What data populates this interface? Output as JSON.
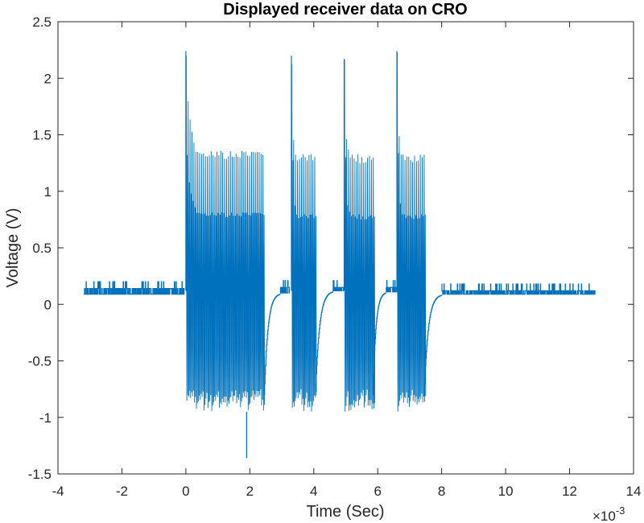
{
  "chart_data": {
    "type": "line",
    "title": "Displayed receiver data on CRO",
    "xlabel": "Time (Sec)",
    "ylabel": "Voltage (V)",
    "x_exponent_label": "×10",
    "x_exponent_power": "-3",
    "xlim": [
      -4,
      14
    ],
    "ylim": [
      -1.5,
      2.5
    ],
    "x_ticks": [
      -4,
      -2,
      0,
      2,
      4,
      6,
      8,
      10,
      12,
      14
    ],
    "y_ticks": [
      -1.5,
      -1,
      -0.5,
      0,
      0.5,
      1,
      1.5,
      2,
      2.5
    ],
    "x_tick_labels": [
      "-4",
      "-2",
      "0",
      "2",
      "4",
      "6",
      "8",
      "10",
      "12",
      "14"
    ],
    "y_tick_labels": [
      "-1.5",
      "-1",
      "-0.5",
      "0",
      "0.5",
      "1",
      "1.5",
      "2",
      "2.5"
    ],
    "grid": false,
    "line_color": "#0072BD",
    "series": [
      {
        "baseline_segments": [
          {
            "x_start": -3.2,
            "x_end": -0.05,
            "low": 0.09,
            "high": 0.14
          },
          {
            "x_start": 2.95,
            "x_end": 3.25,
            "low": 0.1,
            "high": 0.15
          },
          {
            "x_start": 4.6,
            "x_end": 4.95,
            "low": 0.12,
            "high": 0.15
          },
          {
            "x_start": 6.25,
            "x_end": 6.6,
            "low": 0.11,
            "high": 0.15
          },
          {
            "x_start": 8.0,
            "x_end": 12.8,
            "low": 0.09,
            "high": 0.12
          }
        ],
        "bursts": [
          {
            "x_start": 0.0,
            "x_end": 2.45,
            "peak": 2.24,
            "high": 1.36,
            "low": -0.95,
            "min_spike": -1.36,
            "min_spike_x": 1.9
          },
          {
            "x_start": 3.3,
            "x_end": 4.05,
            "peak": 2.2,
            "high": 1.34,
            "low": -0.95
          },
          {
            "x_start": 4.95,
            "x_end": 5.85,
            "peak": 2.17,
            "high": 1.33,
            "low": -0.95
          },
          {
            "x_start": 6.6,
            "x_end": 7.45,
            "peak": 2.24,
            "high": 1.33,
            "low": -0.95
          }
        ],
        "recoveries": [
          {
            "x_start": 2.45,
            "x_end": 2.95,
            "from": -0.8,
            "to": 0.1
          },
          {
            "x_start": 4.05,
            "x_end": 4.6,
            "from": -0.8,
            "to": 0.12
          },
          {
            "x_start": 5.85,
            "x_end": 6.25,
            "from": -0.8,
            "to": 0.11
          },
          {
            "x_start": 7.45,
            "x_end": 8.0,
            "from": -0.8,
            "to": 0.09
          }
        ]
      }
    ]
  }
}
